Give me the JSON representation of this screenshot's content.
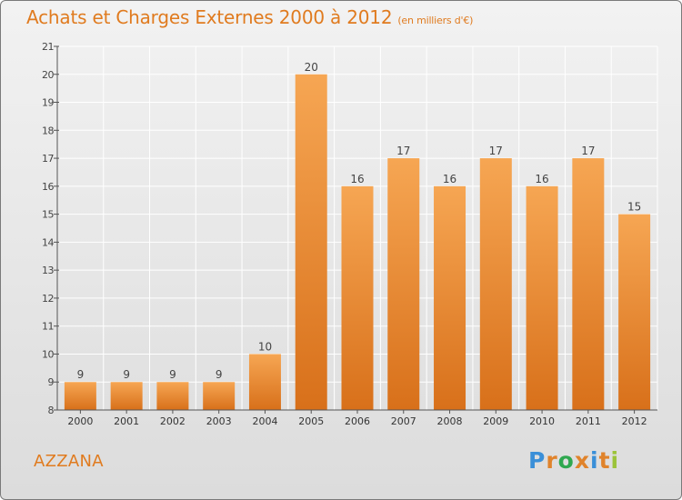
{
  "title": "Achats et Charges Externes 2000 à 2012",
  "subtitle": "(en milliers d'€)",
  "commune": "AZZANA",
  "brand": {
    "text": "Proxiti",
    "letter_colors": [
      "#3a8fd8",
      "#e0832b",
      "#2fa84f",
      "#e0832b",
      "#3a8fd8",
      "#e0832b",
      "#9bc33a"
    ]
  },
  "colors": {
    "title": "#e07b1f",
    "bar_top": "#f6a653",
    "bar_bottom": "#d8701a",
    "axis": "#555555",
    "grid": "#ffffff"
  },
  "chart_data": {
    "type": "bar",
    "categories": [
      "2000",
      "2001",
      "2002",
      "2003",
      "2004",
      "2005",
      "2006",
      "2007",
      "2008",
      "2009",
      "2010",
      "2011",
      "2012"
    ],
    "values": [
      9,
      9,
      9,
      9,
      10,
      20,
      16,
      17,
      16,
      17,
      16,
      17,
      15
    ],
    "ylim": [
      8,
      21
    ],
    "yticks": [
      8,
      9,
      10,
      11,
      12,
      13,
      14,
      15,
      16,
      17,
      18,
      19,
      20,
      21
    ],
    "grid": true,
    "data_labels": true
  }
}
